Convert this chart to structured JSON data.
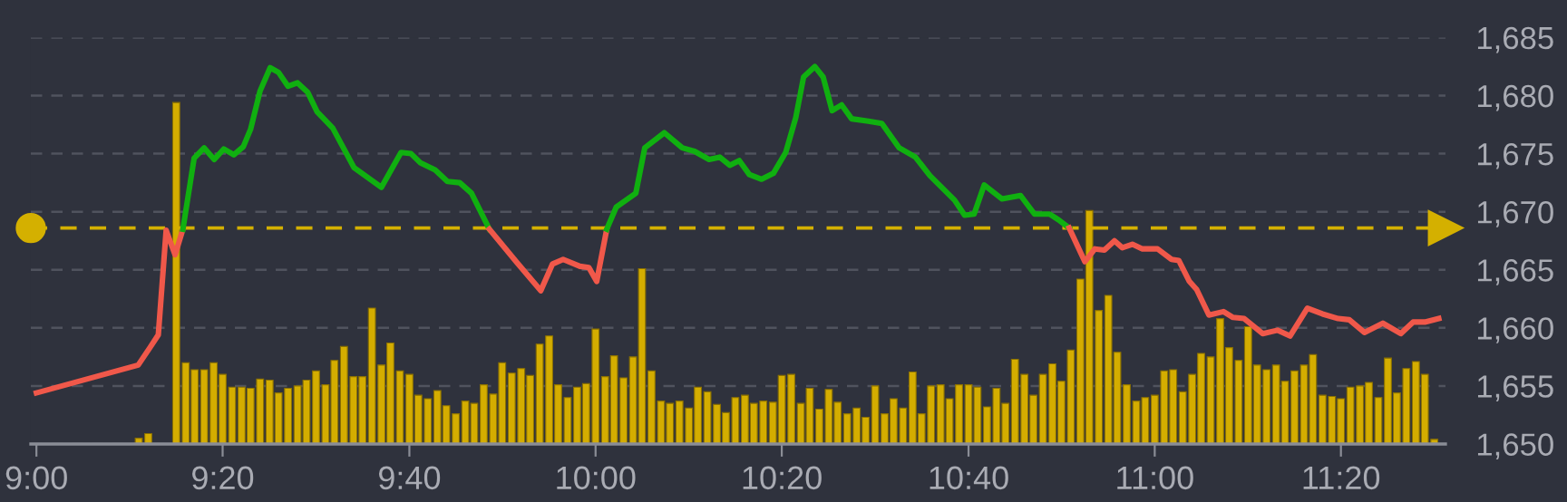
{
  "chart_data": {
    "type": "line",
    "xlim": [
      8.99,
      11.52
    ],
    "ylim": [
      1650,
      1685
    ],
    "xticks": [
      {
        "value": 9,
        "label": "9:00"
      },
      {
        "value": 9.333,
        "label": "9:20"
      },
      {
        "value": 9.667,
        "label": "9:40"
      },
      {
        "value": 10,
        "label": "10:00"
      },
      {
        "value": 10.333,
        "label": "10:20"
      },
      {
        "value": 10.667,
        "label": "10:40"
      },
      {
        "value": 11,
        "label": "11:00"
      },
      {
        "value": 11.333,
        "label": "11:20"
      }
    ],
    "yticks": [
      {
        "value": 1650,
        "label": "1,650"
      },
      {
        "value": 1655,
        "label": "1,655"
      },
      {
        "value": 1660,
        "label": "1,660"
      },
      {
        "value": 1665,
        "label": "1,665"
      },
      {
        "value": 1670,
        "label": "1,670"
      },
      {
        "value": 1675,
        "label": "1,675"
      },
      {
        "value": 1680,
        "label": "1,680"
      },
      {
        "value": 1685,
        "label": "1,685"
      }
    ],
    "grid": "y",
    "marker": "none",
    "line_style": "solid",
    "legend": false,
    "ref_lines": [
      {
        "axis": "y",
        "value": 1668.6,
        "color": "#d4b000",
        "line_style": "dashed"
      }
    ],
    "series": [
      {
        "type": "bar",
        "color": "#d4ad00",
        "x": [
          9.183,
          9.2,
          9.25,
          9.267,
          9.283,
          9.3,
          9.317,
          9.333,
          9.35,
          9.367,
          9.383,
          9.4,
          9.417,
          9.433,
          9.45,
          9.467,
          9.483,
          9.5,
          9.517,
          9.533,
          9.55,
          9.567,
          9.583,
          9.6,
          9.617,
          9.633,
          9.65,
          9.667,
          9.683,
          9.7,
          9.717,
          9.733,
          9.75,
          9.767,
          9.783,
          9.8,
          9.817,
          9.833,
          9.85,
          9.867,
          9.883,
          9.9,
          9.917,
          9.933,
          9.95,
          9.967,
          9.983,
          10,
          10.017,
          10.033,
          10.05,
          10.067,
          10.083,
          10.1,
          10.117,
          10.133,
          10.15,
          10.167,
          10.183,
          10.2,
          10.217,
          10.233,
          10.25,
          10.267,
          10.283,
          10.3,
          10.317,
          10.333,
          10.35,
          10.367,
          10.383,
          10.4,
          10.417,
          10.433,
          10.45,
          10.467,
          10.483,
          10.5,
          10.517,
          10.533,
          10.55,
          10.567,
          10.583,
          10.6,
          10.617,
          10.633,
          10.65,
          10.667,
          10.683,
          10.7,
          10.717,
          10.733,
          10.75,
          10.767,
          10.783,
          10.8,
          10.817,
          10.833,
          10.85,
          10.867,
          10.883,
          10.9,
          10.917,
          10.933,
          10.95,
          10.967,
          10.983,
          11,
          11.017,
          11.033,
          11.05,
          11.067,
          11.083,
          11.1,
          11.117,
          11.133,
          11.15,
          11.167,
          11.183,
          11.2,
          11.217,
          11.233,
          11.25,
          11.267,
          11.283,
          11.3,
          11.317,
          11.333,
          11.35,
          11.367,
          11.383,
          11.4,
          11.417,
          11.433,
          11.45,
          11.467,
          11.483,
          11.5
        ],
        "values": [
          1650.5,
          1650.9,
          1679.4,
          1657.0,
          1656.4,
          1656.4,
          1657.0,
          1656.0,
          1654.9,
          1654.9,
          1654.8,
          1655.6,
          1655.5,
          1654.4,
          1654.8,
          1655.0,
          1655.5,
          1656.3,
          1655.1,
          1657.2,
          1658.4,
          1655.8,
          1655.8,
          1661.7,
          1656.8,
          1658.7,
          1656.3,
          1656.0,
          1654.2,
          1653.9,
          1654.6,
          1653.3,
          1652.6,
          1653.7,
          1653.5,
          1655.1,
          1654.3,
          1657.0,
          1656.1,
          1656.5,
          1655.9,
          1658.6,
          1659.3,
          1655.1,
          1654.0,
          1654.9,
          1655.2,
          1659.9,
          1655.8,
          1657.6,
          1655.7,
          1657.5,
          1665.1,
          1656.3,
          1653.7,
          1653.5,
          1653.7,
          1653.1,
          1654.9,
          1654.5,
          1653.4,
          1652.7,
          1654.0,
          1654.2,
          1653.5,
          1653.7,
          1653.6,
          1655.9,
          1656.0,
          1653.5,
          1654.8,
          1653.0,
          1654.7,
          1653.6,
          1652.6,
          1653.1,
          1652.3,
          1655.0,
          1652.6,
          1653.9,
          1653.1,
          1656.2,
          1652.6,
          1655.0,
          1655.1,
          1653.9,
          1655.1,
          1655.1,
          1654.9,
          1653.2,
          1654.8,
          1653.5,
          1657.3,
          1656.0,
          1654.2,
          1656.0,
          1656.9,
          1655.4,
          1658.1,
          1664.2,
          1670.1,
          1661.5,
          1662.8,
          1657.9,
          1655.1,
          1653.7,
          1654.0,
          1654.2,
          1656.3,
          1656.4,
          1654.5,
          1656.0,
          1657.8,
          1657.5,
          1660.8,
          1658.3,
          1657.2,
          1660.1,
          1656.8,
          1656.4,
          1656.8,
          1655.4,
          1656.3,
          1656.8,
          1657.7,
          1654.2,
          1654.1,
          1653.9,
          1654.9,
          1655.0,
          1655.3,
          1654.0,
          1657.4,
          1654.4,
          1656.5,
          1657.1,
          1656.0,
          1650.4
        ]
      },
      {
        "color": "#f0584a",
        "x": [
          9,
          9.182,
          9.203,
          9.218,
          9.232,
          9.248,
          9.262
        ],
        "values": [
          1654.4,
          1656.8,
          1658.3,
          1659.4,
          1668.4,
          1666.3,
          1668.5
        ]
      },
      {
        "color": "#10b010",
        "x": [
          9.262,
          9.282,
          9.3,
          9.318,
          9.335,
          9.353,
          9.37,
          9.383,
          9.4,
          9.418,
          9.433,
          9.45,
          9.467,
          9.485,
          9.502,
          9.53,
          9.568,
          9.617,
          9.652,
          9.67,
          9.687,
          9.713,
          9.735,
          9.757,
          9.778,
          9.81
        ],
        "values": [
          1668.5,
          1674.6,
          1675.5,
          1674.5,
          1675.4,
          1674.9,
          1675.6,
          1677.1,
          1680.4,
          1682.4,
          1682.0,
          1680.8,
          1681.1,
          1680.3,
          1678.6,
          1677.2,
          1673.8,
          1672.1,
          1675.1,
          1675.0,
          1674.2,
          1673.6,
          1672.6,
          1672.5,
          1671.6,
          1668.5
        ]
      },
      {
        "color": "#f0584a",
        "x": [
          9.81,
          9.858,
          9.902,
          9.923,
          9.942,
          9.972,
          9.988,
          10.002,
          10.02
        ],
        "values": [
          1668.5,
          1665.7,
          1663.2,
          1665.5,
          1665.9,
          1665.3,
          1665.2,
          1664.0,
          1668.5
        ]
      },
      {
        "color": "#10b010",
        "x": [
          10.02,
          10.037,
          10.072,
          10.088,
          10.123,
          10.155,
          10.177,
          10.203,
          10.222,
          10.24,
          10.257,
          10.275,
          10.297,
          10.318,
          10.34,
          10.358,
          10.372,
          10.392,
          10.407,
          10.423,
          10.44,
          10.458,
          10.488,
          10.512,
          10.543,
          10.572,
          10.598,
          10.642,
          10.66,
          10.677,
          10.695,
          10.727,
          10.76,
          10.785,
          10.812,
          10.828,
          10.847
        ],
        "values": [
          1668.5,
          1670.4,
          1671.6,
          1675.5,
          1676.8,
          1675.5,
          1675.2,
          1674.5,
          1674.7,
          1674.0,
          1674.4,
          1673.2,
          1672.8,
          1673.3,
          1675.1,
          1678.1,
          1681.6,
          1682.5,
          1681.6,
          1678.7,
          1679.2,
          1678.0,
          1677.8,
          1677.6,
          1675.5,
          1674.7,
          1673.1,
          1671.0,
          1669.7,
          1669.8,
          1672.3,
          1671.1,
          1671.4,
          1669.8,
          1669.8,
          1669.3,
          1668.6
        ]
      },
      {
        "color": "#f0584a",
        "x": [
          10.847,
          10.875,
          10.893,
          10.91,
          10.928,
          10.942,
          10.96,
          10.978,
          11.005,
          11.03,
          11.043,
          11.062,
          11.075,
          11.097,
          11.123,
          11.14,
          11.16,
          11.193,
          11.22,
          11.242,
          11.273,
          11.3,
          11.328,
          11.348,
          11.375,
          11.408,
          11.44,
          11.462,
          11.483,
          11.508
        ],
        "values": [
          1668.6,
          1665.7,
          1666.8,
          1666.7,
          1667.5,
          1666.9,
          1667.2,
          1666.8,
          1666.8,
          1665.9,
          1665.8,
          1664.0,
          1663.3,
          1661.1,
          1661.4,
          1660.9,
          1660.8,
          1659.5,
          1659.8,
          1659.3,
          1661.7,
          1661.2,
          1660.8,
          1660.7,
          1659.6,
          1660.4,
          1659.5,
          1660.5,
          1660.5,
          1660.8
        ]
      }
    ]
  }
}
